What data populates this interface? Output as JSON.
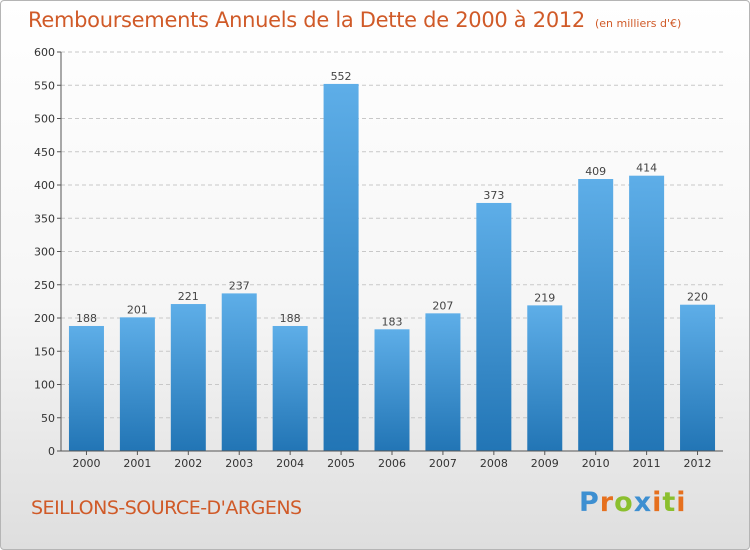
{
  "header": {
    "title": "Remboursements Annuels de la Dette de 2000 à 2012",
    "unit": "(en milliers d'€)"
  },
  "footer": {
    "commune": "SEILLONS-SOURCE-D'ARGENS",
    "logo_text": "Proxiti"
  },
  "colors": {
    "title": "#d05a28",
    "bar_top": "#5eaee8",
    "bar_bottom": "#2275b5",
    "logo_letters": [
      "#3d8fd1",
      "#e6701e",
      "#8bbf2e",
      "#3d8fd1",
      "#e6701e",
      "#8bbf2e",
      "#e6701e"
    ]
  },
  "chart_data": {
    "type": "bar",
    "title": "Remboursements Annuels de la Dette de 2000 à 2012",
    "subtitle": "(en milliers d'€)",
    "xlabel": "",
    "ylabel": "",
    "categories": [
      "2000",
      "2001",
      "2002",
      "2003",
      "2004",
      "2005",
      "2006",
      "2007",
      "2008",
      "2009",
      "2010",
      "2011",
      "2012"
    ],
    "values": [
      188,
      201,
      221,
      237,
      188,
      552,
      183,
      207,
      373,
      219,
      409,
      414,
      220
    ],
    "ylim": [
      0,
      600
    ],
    "yticks": [
      0,
      50,
      100,
      150,
      200,
      250,
      300,
      350,
      400,
      450,
      500,
      550,
      600
    ],
    "grid": "horizontal dashed",
    "legend": "none",
    "data_labels": true
  }
}
